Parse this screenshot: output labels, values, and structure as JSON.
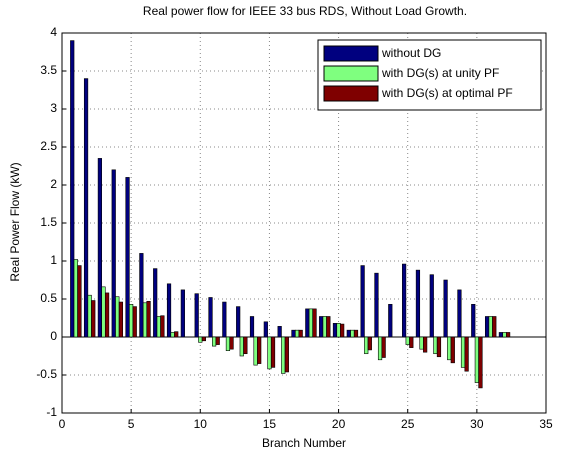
{
  "chart_data": {
    "type": "bar",
    "title": "Real power flow for IEEE 33 bus RDS, Without Load Growth.",
    "x_label": "Branch Number",
    "y_label": "Real Power Flow (kW)",
    "x": [
      1,
      2,
      3,
      4,
      5,
      6,
      7,
      8,
      9,
      10,
      11,
      12,
      13,
      14,
      15,
      16,
      17,
      18,
      19,
      20,
      21,
      22,
      23,
      24,
      25,
      26,
      27,
      28,
      29,
      30,
      31,
      32
    ],
    "series": [
      {
        "name": "without DG",
        "color": "#00007f",
        "values": [
          3.9,
          3.4,
          2.35,
          2.2,
          2.1,
          1.1,
          0.9,
          0.7,
          0.62,
          0.57,
          0.52,
          0.46,
          0.4,
          0.27,
          0.2,
          0.14,
          0.09,
          0.37,
          0.27,
          0.18,
          0.09,
          0.94,
          0.84,
          0.43,
          0.96,
          0.88,
          0.82,
          0.75,
          0.62,
          0.43,
          0.27,
          0.06
        ]
      },
      {
        "name": "with DG(s) at unity PF",
        "color": "#7fff7f",
        "values": [
          1.02,
          0.55,
          0.66,
          0.53,
          0.43,
          0.45,
          0.27,
          0.06,
          0.0,
          -0.07,
          -0.12,
          -0.18,
          -0.25,
          -0.37,
          -0.42,
          -0.48,
          0.09,
          0.37,
          0.27,
          0.18,
          0.09,
          -0.22,
          -0.3,
          0.0,
          -0.1,
          -0.16,
          -0.22,
          -0.3,
          -0.4,
          -0.6,
          0.27,
          0.06
        ]
      },
      {
        "name": "with DG(s) at optimal PF",
        "color": "#7f0000",
        "values": [
          0.94,
          0.48,
          0.58,
          0.46,
          0.4,
          0.47,
          0.28,
          0.07,
          0.0,
          -0.05,
          -0.1,
          -0.16,
          -0.22,
          -0.35,
          -0.4,
          -0.46,
          0.09,
          0.37,
          0.27,
          0.17,
          0.09,
          -0.17,
          -0.27,
          0.0,
          -0.14,
          -0.2,
          -0.26,
          -0.34,
          -0.45,
          -0.67,
          0.27,
          0.06
        ]
      }
    ],
    "xlim": [
      0,
      35
    ],
    "xticks": [
      0,
      5,
      10,
      15,
      20,
      25,
      30,
      35
    ],
    "ylim": [
      -1,
      4
    ],
    "yticks": [
      -1,
      -0.5,
      0,
      0.5,
      1,
      1.5,
      2,
      2.5,
      3,
      3.5,
      4
    ],
    "grid": true,
    "legend_position": "upper-right"
  }
}
